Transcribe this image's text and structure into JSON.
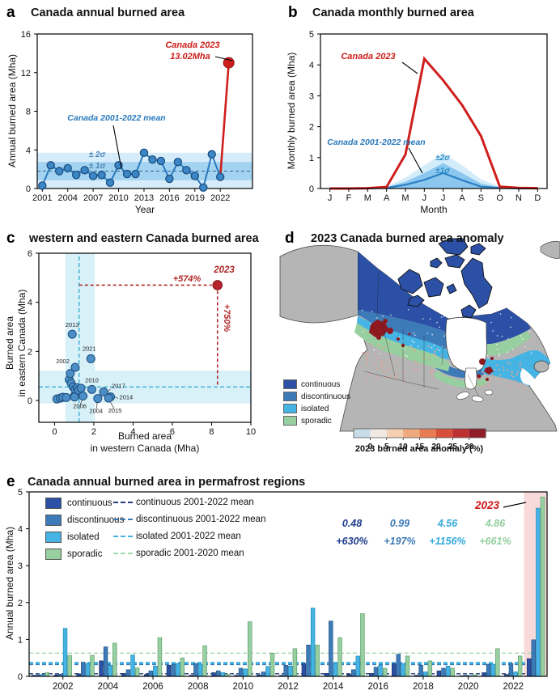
{
  "panels": {
    "a": {
      "letter": "a",
      "title": "Canada annual burned area",
      "xlabel": "Year",
      "ylabel": "Annual burned area (Mha)",
      "ann": {
        "red1": "Canada 2023",
        "red2": "13.02Mha",
        "mean": "Canada 2001-2022 mean",
        "s2": "± 2σ",
        "s1": "± 1σ"
      }
    },
    "b": {
      "letter": "b",
      "title": "Canada monthly burned area",
      "xlabel": "Month",
      "ylabel": "Monthly burned area (Mha)",
      "ann": {
        "red": "Canada 2023",
        "mean": "Canada 2001-2022 mean",
        "s2": "±2σ",
        "s1": "±1σ"
      }
    },
    "c": {
      "letter": "c",
      "title": "western and eastern Canada burned area",
      "xlabel1": "Burned area",
      "xlabel2": "in western Canada (Mha)",
      "ylabel1": "Burned area",
      "ylabel2": "in eastern Canada (Mha)",
      "ann": {
        "year": "2023",
        "h": "+574%",
        "v": "+750%"
      }
    },
    "d": {
      "letter": "d",
      "title": "2023 Canada burned area anomaly",
      "legend": [
        {
          "label": "continuous",
          "color": "#2b50a5"
        },
        {
          "label": "discontinuous",
          "color": "#3d7ab8"
        },
        {
          "label": "isolated",
          "color": "#45b4e4"
        },
        {
          "label": "sporadic",
          "color": "#98cfa0"
        }
      ],
      "colorbar": {
        "label": "2023 burned area anomaly (%)",
        "ticks": [
          0,
          5,
          10,
          15,
          20,
          25,
          30
        ],
        "colors": [
          "#c7dce6",
          "#f0e9e3",
          "#f5cfb2",
          "#efa87c",
          "#e77c55",
          "#d8503c",
          "#bc3130",
          "#8f1c26"
        ]
      }
    },
    "e": {
      "letter": "e",
      "title": "Canada annual burned area in permafrost regions",
      "ylabel": "Annual burned area (Mha)",
      "legend_series": [
        "continuous",
        "discontinuous",
        "isolated",
        "sporadic"
      ],
      "legend_means": [
        "continuous 2001-2022 mean",
        "discontinuous 2001-2022 mean",
        "isolated 2001-2022 mean",
        "sporadic 2001-2020 mean"
      ],
      "ann": {
        "label_2023": "2023",
        "cols": [
          {
            "value": "0.48",
            "pct": "+630%",
            "color": "#1f3d8c"
          },
          {
            "value": "0.99",
            "pct": "+197%",
            "color": "#3d7ab8"
          },
          {
            "value": "4.56",
            "pct": "+1156%",
            "color": "#35aadc"
          },
          {
            "value": "4.86",
            "pct": "+661%",
            "color": "#93cf9e"
          }
        ]
      }
    }
  },
  "chart_data": [
    {
      "id": "a",
      "type": "line",
      "title": "Canada annual burned area",
      "xlabel": "Year",
      "ylabel": "Annual burned area (Mha)",
      "ylim": [
        0,
        16
      ],
      "yticks": [
        0,
        4,
        8,
        12,
        16
      ],
      "xticks": [
        2001,
        2004,
        2007,
        2010,
        2013,
        2016,
        2019,
        2022
      ],
      "years": [
        2001,
        2002,
        2003,
        2004,
        2005,
        2006,
        2007,
        2008,
        2009,
        2010,
        2011,
        2012,
        2013,
        2014,
        2015,
        2016,
        2017,
        2018,
        2019,
        2020,
        2021,
        2022
      ],
      "values": [
        0.3,
        2.4,
        1.8,
        2.1,
        1.4,
        1.9,
        1.3,
        1.4,
        0.6,
        2.4,
        1.5,
        1.5,
        3.7,
        3.0,
        2.85,
        1.0,
        2.75,
        1.9,
        1.3,
        0.1,
        3.55,
        1.2
      ],
      "mean": 1.8,
      "sigma": 0.95,
      "highlight": {
        "year": 2023,
        "value": 13.02
      }
    },
    {
      "id": "b",
      "type": "line",
      "title": "Canada monthly burned area",
      "xlabel": "Month",
      "ylabel": "Monthly burned area (Mha)",
      "ylim": [
        0,
        5
      ],
      "yticks": [
        0,
        1,
        2,
        3,
        4,
        5
      ],
      "months": [
        "J",
        "F",
        "M",
        "A",
        "M",
        "J",
        "J",
        "A",
        "S",
        "O",
        "N",
        "D"
      ],
      "canada_2023": [
        0,
        0,
        0.01,
        0.05,
        1.1,
        4.2,
        3.5,
        2.7,
        1.7,
        0.06,
        0.02,
        0.01
      ],
      "mean_2001_2022": [
        0,
        0,
        0,
        0.02,
        0.12,
        0.28,
        0.5,
        0.27,
        0.06,
        0.02,
        0,
        0
      ],
      "sigma1_upper": [
        0,
        0,
        0,
        0.04,
        0.22,
        0.5,
        0.82,
        0.5,
        0.16,
        0.04,
        0,
        0
      ],
      "sigma2_upper": [
        0,
        0,
        0,
        0.06,
        0.35,
        0.75,
        1.15,
        0.75,
        0.3,
        0.06,
        0,
        0
      ]
    },
    {
      "id": "c",
      "type": "scatter",
      "title": "western and eastern Canada burned area",
      "xlabel": "Burned area in western Canada (Mha)",
      "ylabel": "Burned area in eastern Canada (Mha)",
      "xlim": [
        -0.8,
        10
      ],
      "ylim": [
        -0.89,
        6
      ],
      "xticks": [
        0,
        2,
        4,
        6,
        8,
        10
      ],
      "yticks": [
        0,
        2,
        4,
        6
      ],
      "mean_x": 1.25,
      "mean_y": 0.55,
      "band_x": [
        0.55,
        2.05
      ],
      "band_y": [
        -0.12,
        1.22
      ],
      "points": [
        {
          "x": 0.12,
          "y": 0.06
        },
        {
          "x": 0.3,
          "y": 0.1
        },
        {
          "x": 0.42,
          "y": 0.13
        },
        {
          "x": 0.6,
          "y": 0.12
        },
        {
          "x": 0.75,
          "y": 0.85
        },
        {
          "x": 0.8,
          "y": 1.1
        },
        {
          "x": 0.85,
          "y": 0.7
        },
        {
          "x": 0.95,
          "y": 0.55
        },
        {
          "x": 1.02,
          "y": 0.2
        },
        {
          "x": 1.05,
          "y": 0.45
        },
        {
          "x": 1.15,
          "y": 0.52
        },
        {
          "x": 1.22,
          "y": 0.42
        },
        {
          "x": 1.35,
          "y": 0.5
        },
        {
          "x": 1.02,
          "y": 0.14
        }
      ],
      "labeled_points": [
        {
          "year": "2013",
          "x": 0.9,
          "y": 2.7
        },
        {
          "year": "2002",
          "x": 1.05,
          "y": 1.35
        },
        {
          "year": "2021",
          "x": 1.85,
          "y": 1.7
        },
        {
          "year": "2010",
          "x": 1.9,
          "y": 0.45
        },
        {
          "year": "2017",
          "x": 2.5,
          "y": 0.35
        },
        {
          "year": "2014",
          "x": 2.85,
          "y": 0.15
        },
        {
          "year": "2006",
          "x": 1.45,
          "y": 0.18
        },
        {
          "year": "2004",
          "x": 2.2,
          "y": 0.08
        },
        {
          "year": "2015",
          "x": 2.75,
          "y": 0.1
        }
      ],
      "p2023": {
        "x": 8.3,
        "y": 4.7,
        "pct_x": "+574%",
        "pct_y": "+750%"
      }
    },
    {
      "id": "e",
      "type": "bar",
      "title": "Canada annual burned area in permafrost regions",
      "ylabel": "Annual burned area (Mha)",
      "ylim": [
        0,
        5
      ],
      "yticks": [
        0,
        1,
        2,
        3,
        4,
        5
      ],
      "xticks": [
        2002,
        2004,
        2006,
        2008,
        2010,
        2012,
        2014,
        2016,
        2018,
        2020,
        2022
      ],
      "years": [
        2001,
        2002,
        2003,
        2004,
        2005,
        2006,
        2007,
        2008,
        2009,
        2010,
        2011,
        2012,
        2013,
        2014,
        2015,
        2016,
        2017,
        2018,
        2019,
        2020,
        2021,
        2022,
        2023
      ],
      "series": [
        {
          "name": "continuous",
          "color": "#2b50a5",
          "values": [
            0.03,
            0.04,
            0.07,
            0.42,
            0.08,
            0.05,
            0.3,
            0.03,
            0.1,
            0.03,
            0.04,
            0.03,
            0.35,
            0.08,
            0.05,
            0.08,
            0.35,
            0.03,
            0.15,
            0.02,
            0.1,
            0.05,
            0.48
          ]
        },
        {
          "name": "discontinuous",
          "color": "#3d7ab8",
          "values": [
            0.04,
            0.06,
            0.38,
            0.8,
            0.18,
            0.15,
            0.33,
            0.35,
            0.15,
            0.22,
            0.12,
            0.3,
            0.85,
            1.5,
            0.18,
            0.25,
            0.6,
            0.3,
            0.22,
            0.03,
            0.33,
            0.35,
            0.99
          ]
        },
        {
          "name": "isolated",
          "color": "#45b4e4",
          "values": [
            0.05,
            1.3,
            0.35,
            0.3,
            0.58,
            0.28,
            0.35,
            0.33,
            0.1,
            0.2,
            0.27,
            0.28,
            1.85,
            0.35,
            0.55,
            0.3,
            0.35,
            0.12,
            0.28,
            0.02,
            0.33,
            0.12,
            4.56
          ]
        },
        {
          "name": "sporadic",
          "color": "#98cfa0",
          "values": [
            0.1,
            0.57,
            0.57,
            0.9,
            0.23,
            1.05,
            0.5,
            0.83,
            0.06,
            1.48,
            0.63,
            0.75,
            0.85,
            1.05,
            1.7,
            0.22,
            0.55,
            0.42,
            0.22,
            0.04,
            0.75,
            0.55,
            4.86
          ]
        }
      ],
      "means": [
        {
          "name": "continuous 2001-2022 mean",
          "value": 0.07,
          "color": "#1f3d7c"
        },
        {
          "name": "discontinuous 2001-2022 mean",
          "value": 0.32,
          "color": "#3c7ab6"
        },
        {
          "name": "isolated 2001-2022 mean",
          "value": 0.36,
          "color": "#44b3e2"
        },
        {
          "name": "sporadic 2001-2020 mean",
          "value": 0.63,
          "color": "#a6d7ae"
        }
      ],
      "highlight_year": 2023
    }
  ]
}
